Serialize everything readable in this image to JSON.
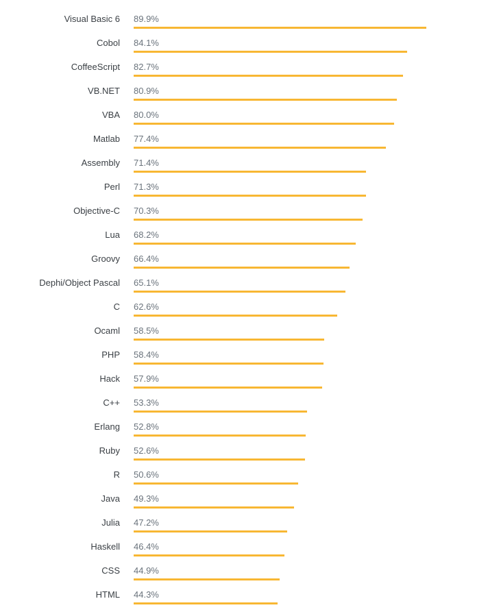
{
  "colors": {
    "bar": "#f8b733"
  },
  "chart_data": {
    "type": "bar",
    "orientation": "horizontal",
    "title": "",
    "xlabel": "",
    "ylabel": "",
    "xlim": [
      0,
      100
    ],
    "grid": false,
    "categories": [
      "Visual Basic 6",
      "Cobol",
      "CoffeeScript",
      "VB.NET",
      "VBA",
      "Matlab",
      "Assembly",
      "Perl",
      "Objective-C",
      "Lua",
      "Groovy",
      "Dephi/Object Pascal",
      "C",
      "Ocaml",
      "PHP",
      "Hack",
      "C++",
      "Erlang",
      "Ruby",
      "R",
      "Java",
      "Julia",
      "Haskell",
      "CSS",
      "HTML"
    ],
    "values": [
      89.9,
      84.1,
      82.7,
      80.9,
      80.0,
      77.4,
      71.4,
      71.3,
      70.3,
      68.2,
      66.4,
      65.1,
      62.6,
      58.5,
      58.4,
      57.9,
      53.3,
      52.8,
      52.6,
      50.6,
      49.3,
      47.2,
      46.4,
      44.9,
      44.3
    ],
    "value_labels": [
      "89.9%",
      "84.1%",
      "82.7%",
      "80.9%",
      "80.0%",
      "77.4%",
      "71.4%",
      "71.3%",
      "70.3%",
      "68.2%",
      "66.4%",
      "65.1%",
      "62.6%",
      "58.5%",
      "58.4%",
      "57.9%",
      "53.3%",
      "52.8%",
      "52.6%",
      "50.6%",
      "49.3%",
      "47.2%",
      "46.4%",
      "44.9%",
      "44.3%"
    ]
  }
}
